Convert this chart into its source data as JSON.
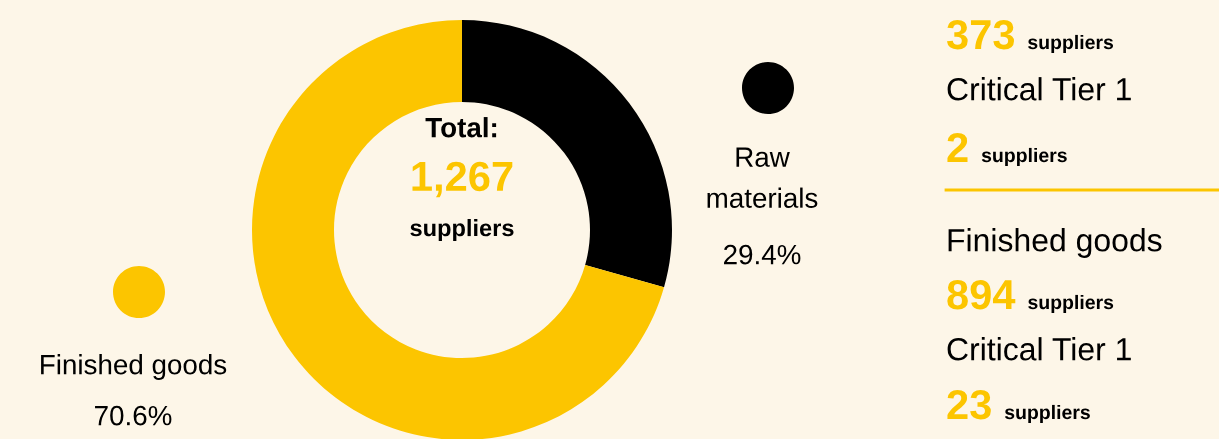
{
  "chart_data": [
    {
      "type": "donut",
      "categories": [
        "Raw\nmaterials",
        "Finished goods"
      ],
      "values": [
        29.4,
        70.6
      ],
      "colors": [
        "#000000",
        "#fcc500"
      ],
      "value_labels": [
        "29.4%",
        "70.6%"
      ],
      "annotations": [
        "Total:",
        "1,267",
        "suppliers"
      ]
    },
    {
      "type": "other",
      "annotations": [
        "373",
        "suppliers",
        "Critical Tier 1",
        "2",
        "suppliers",
        "Finished goods",
        "894",
        "suppliers",
        "Critical Tier 1",
        "23",
        "suppliers"
      ]
    }
  ]
}
